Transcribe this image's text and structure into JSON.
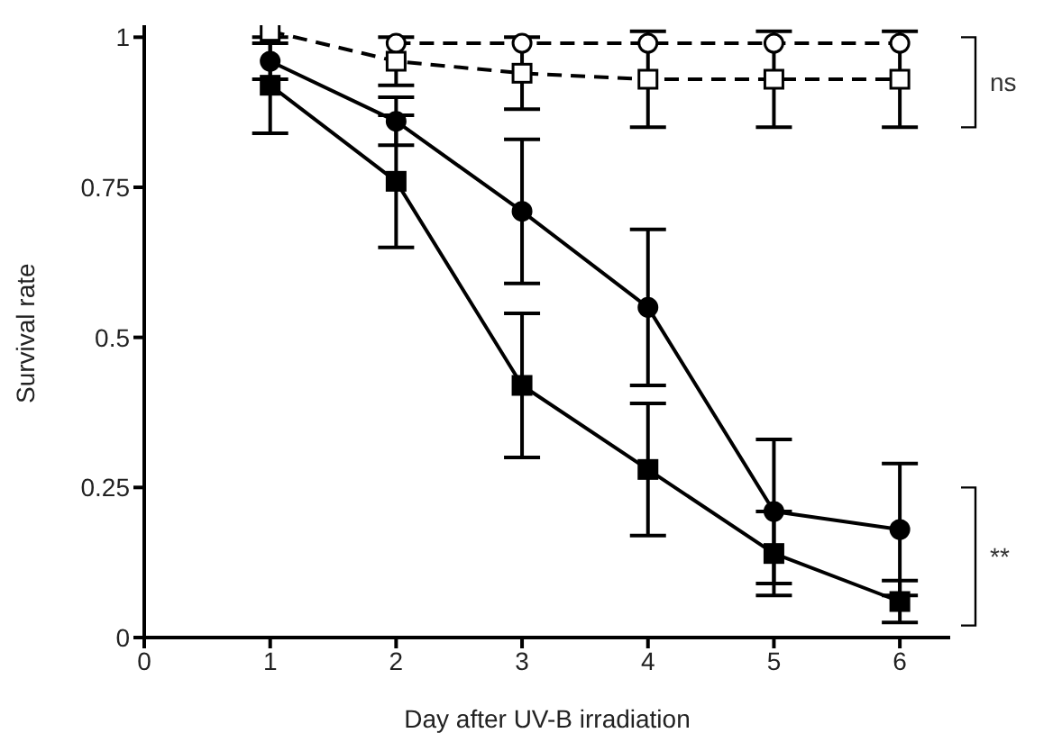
{
  "chart_data": {
    "type": "line",
    "xlabel": "Day after UV-B irradiation",
    "ylabel": "Survival rate",
    "x": [
      1,
      2,
      3,
      4,
      5,
      6
    ],
    "series": [
      {
        "color": "#000000",
        "marker": "circle",
        "line_style": "dashed",
        "values": [
          null,
          0.99,
          0.99,
          0.99,
          0.99,
          0.99
        ]
      },
      {
        "color": "#000000",
        "marker": "square",
        "line_style": "dashed",
        "values": [
          1.01,
          0.96,
          0.94,
          0.93,
          0.93,
          0.93
        ],
        "errors": [
          null,
          0.04,
          0.06,
          0.08,
          0.08,
          0.08
        ]
      },
      {
        "color": "#000000",
        "marker": "circle",
        "line_style": "solid",
        "values": [
          0.96,
          0.86,
          0.71,
          0.55,
          0.21,
          0.18
        ],
        "errors": [
          0.03,
          0.04,
          0.12,
          0.13,
          0.12,
          0.11
        ]
      },
      {
        "color": "#000000",
        "marker": "square",
        "line_style": "solid",
        "values": [
          0.92,
          0.76,
          0.42,
          0.28,
          0.14,
          0.06
        ],
        "errors": [
          0.08,
          0.11,
          0.12,
          0.11,
          0.07,
          0.035
        ]
      }
    ],
    "xlim": [
      0,
      6.4
    ],
    "xticks": [
      0,
      1,
      2,
      3,
      4,
      5,
      6
    ],
    "ylim": [
      0,
      1.02
    ],
    "yticks": [
      0,
      {
        "value": 0.25,
        "label": "0.25"
      },
      {
        "value": 0.5,
        "label": "0.5"
      },
      {
        "value": 0.75,
        "label": "0.75"
      },
      1
    ],
    "annotations": [
      "ns",
      "**"
    ]
  }
}
